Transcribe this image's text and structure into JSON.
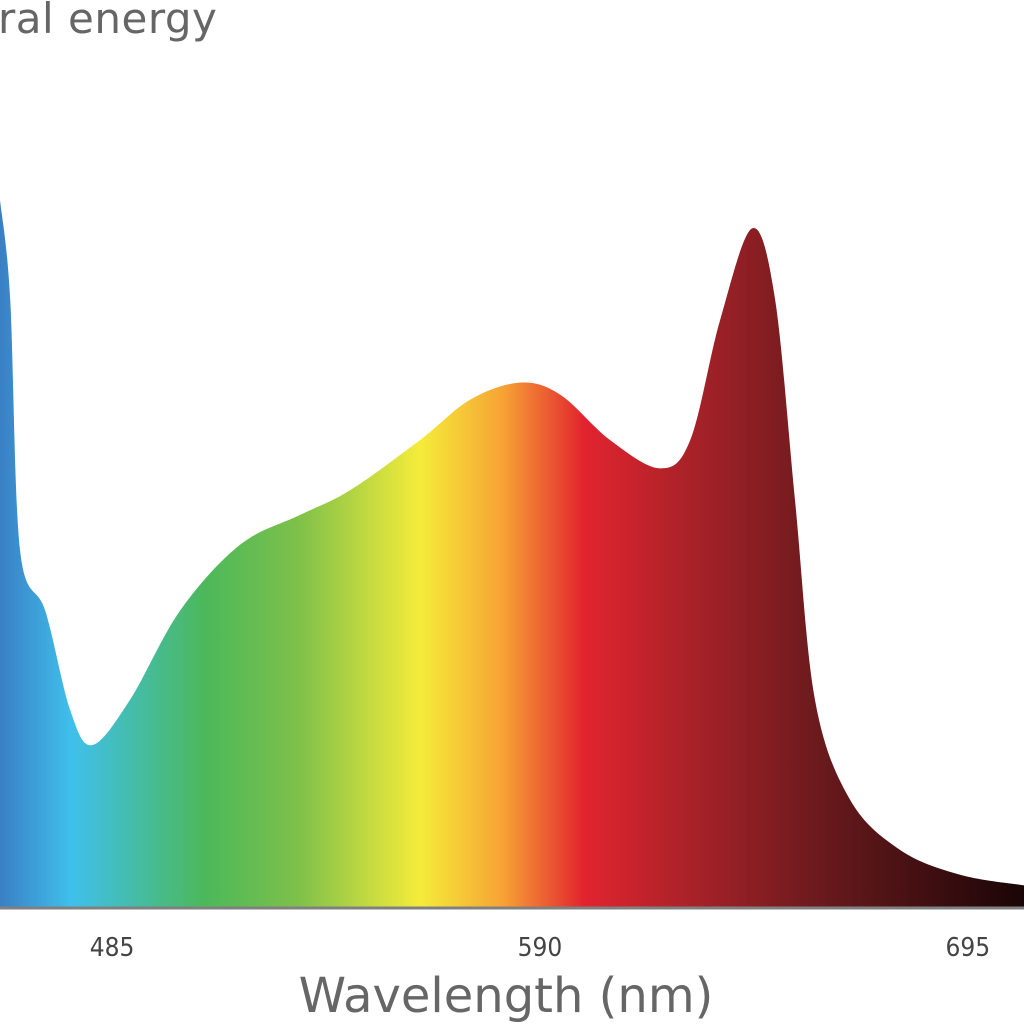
{
  "chart_data": {
    "type": "area",
    "title": "ral energy",
    "xlabel": "Wavelength (nm)",
    "ylabel": "",
    "xlim": [
      457.5,
      708.8
    ],
    "ylim": [
      0,
      1
    ],
    "grid": false,
    "xticks": [
      485,
      590,
      695
    ],
    "xtick_labels": [
      "485",
      "590",
      "695"
    ],
    "fill": "visible-spectrum gradient",
    "series": [
      {
        "name": "relative spectral energy",
        "x": [
          457.5,
          460,
          462.4,
          468.6,
          474.7,
          480.1,
          489.4,
          501.7,
          516.4,
          531.1,
          543.4,
          560.6,
          572.9,
          585.1,
          595,
          607.2,
          619.5,
          626.9,
          634.2,
          642.1,
          647.7,
          652.6,
          657.5,
          666.1,
          678.4,
          693.1,
          708.8
        ],
        "y": [
          1.0,
          0.86,
          0.506,
          0.42,
          0.28,
          0.23,
          0.294,
          0.42,
          0.513,
          0.555,
          0.59,
          0.661,
          0.718,
          0.742,
          0.725,
          0.661,
          0.621,
          0.661,
          0.83,
          0.96,
          0.86,
          0.576,
          0.294,
          0.153,
          0.082,
          0.047,
          0.032
        ]
      }
    ],
    "colors": {
      "gradient": [
        "#3a7fc4",
        "#3fc0ec",
        "#4cb85a",
        "#7dc04a",
        "#f5ec3a",
        "#f7a435",
        "#e2242f",
        "#a52228",
        "#6a1a1d",
        "#1a0506"
      ],
      "axis": "#808080",
      "text": "#666666"
    }
  }
}
